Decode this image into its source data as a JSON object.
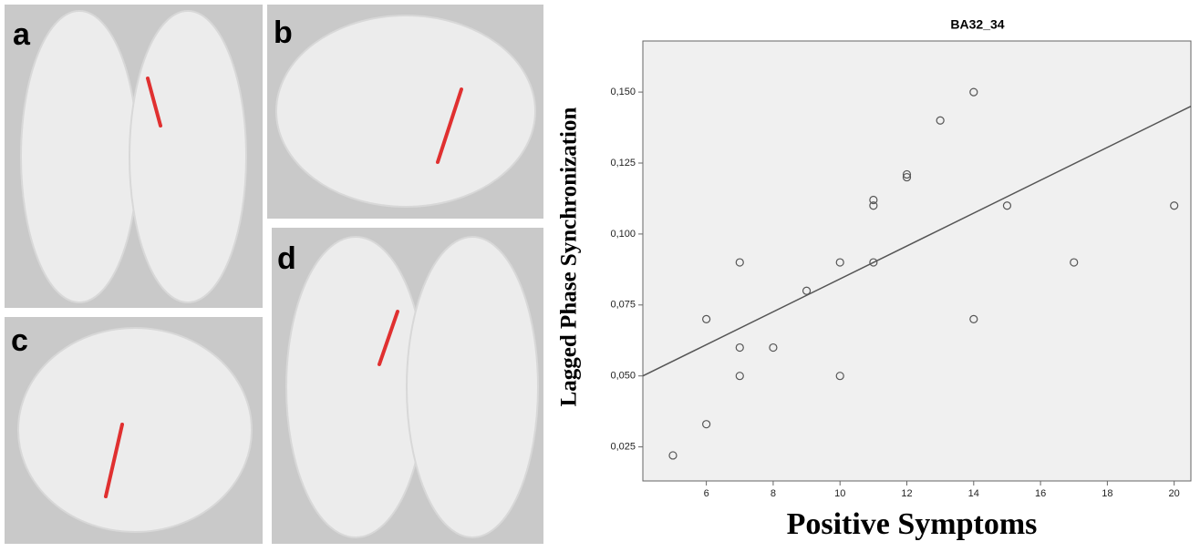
{
  "panels": [
    "a",
    "b",
    "c",
    "d"
  ],
  "chart_data": {
    "type": "scatter",
    "title": "BA32_34",
    "x_label": "Positive Symptoms",
    "y_label": "Lagged Phase Synchronization",
    "x": [
      5,
      6,
      6,
      7,
      7,
      7,
      8,
      9,
      10,
      10,
      11,
      11,
      11,
      12,
      12,
      13,
      14,
      14,
      15,
      17,
      20
    ],
    "values": [
      0.022,
      0.033,
      0.07,
      0.09,
      0.06,
      0.05,
      0.06,
      0.08,
      0.09,
      0.05,
      0.112,
      0.11,
      0.09,
      0.121,
      0.12,
      0.14,
      0.15,
      0.07,
      0.11,
      0.09,
      0.11
    ],
    "color": "#555555",
    "fit": {
      "x": [
        4.1,
        20.5
      ],
      "y": [
        0.05,
        0.145
      ]
    },
    "xlim": [
      4.1,
      20.5
    ],
    "ylim": [
      0.013,
      0.168
    ],
    "xticks": [
      6,
      8,
      10,
      12,
      14,
      16,
      18,
      20
    ],
    "yticks": [
      {
        "value": 0.025,
        "label": "0,025"
      },
      {
        "value": 0.05,
        "label": "0,050"
      },
      {
        "value": 0.075,
        "label": "0,075"
      },
      {
        "value": 0.1,
        "label": "0,100"
      },
      {
        "value": 0.125,
        "label": "0,125"
      },
      {
        "value": 0.15,
        "label": "0,150"
      }
    ]
  }
}
